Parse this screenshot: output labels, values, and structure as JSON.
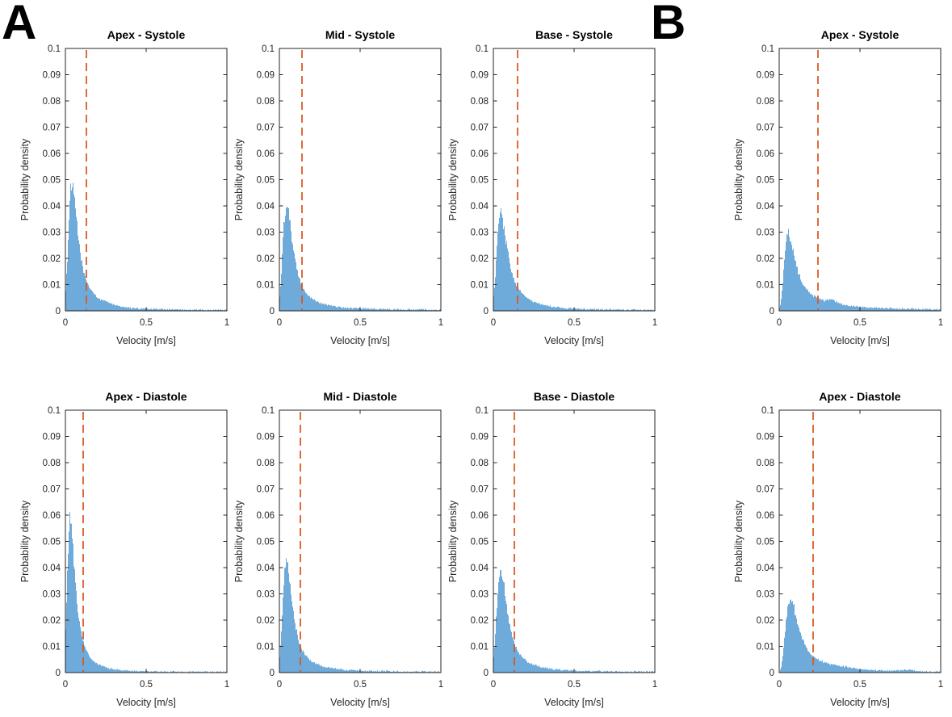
{
  "figure": {
    "panel_a_label": "A",
    "panel_b_label": "B"
  },
  "axes": {
    "xlabel": "Velocity [m/s]",
    "ylabel": "Probability density",
    "xlim": [
      0,
      1
    ],
    "ylim": [
      0,
      0.1
    ],
    "xticks": [
      0,
      0.5,
      1
    ],
    "xtick_labels": [
      "0",
      "0.5",
      "1"
    ],
    "yticks": [
      0,
      0.01,
      0.02,
      0.03,
      0.04,
      0.05,
      0.06,
      0.07,
      0.08,
      0.09,
      0.1
    ],
    "ytick_labels": [
      "0",
      "0.01",
      "0.02",
      "0.03",
      "0.04",
      "0.05",
      "0.06",
      "0.07",
      "0.08",
      "0.09",
      "0.1"
    ],
    "grid": false,
    "box": true,
    "tick_direction": "in"
  },
  "colors": {
    "histogram_fill": "#6fabda",
    "threshold_line": "#d95319",
    "axis": "#262626",
    "tick_text": "#262626",
    "title_text": "#000000",
    "background": "#ffffff"
  },
  "chart_data": [
    {
      "panel": "A",
      "title": "Apex - Systole",
      "type": "histogram",
      "region": "apex",
      "phase": "systole",
      "threshold_x": 0.13,
      "peak": {
        "x": 0.04,
        "y": 0.048
      },
      "envelope": [
        [
          0,
          0.005
        ],
        [
          0.01,
          0.016
        ],
        [
          0.02,
          0.032
        ],
        [
          0.03,
          0.045
        ],
        [
          0.04,
          0.048
        ],
        [
          0.05,
          0.0455
        ],
        [
          0.06,
          0.04
        ],
        [
          0.07,
          0.034
        ],
        [
          0.08,
          0.028
        ],
        [
          0.09,
          0.0235
        ],
        [
          0.1,
          0.019
        ],
        [
          0.11,
          0.016
        ],
        [
          0.12,
          0.0135
        ],
        [
          0.13,
          0.0115
        ],
        [
          0.14,
          0.01
        ],
        [
          0.16,
          0.0078
        ],
        [
          0.18,
          0.0062
        ],
        [
          0.2,
          0.005
        ],
        [
          0.22,
          0.0042
        ],
        [
          0.25,
          0.0036
        ],
        [
          0.27,
          0.0032
        ],
        [
          0.3,
          0.0024
        ],
        [
          0.35,
          0.0016
        ],
        [
          0.4,
          0.0012
        ],
        [
          0.45,
          0.0009
        ],
        [
          0.5,
          0.0008
        ],
        [
          0.6,
          0.0006
        ],
        [
          0.7,
          0.0005
        ],
        [
          0.8,
          0.0004
        ],
        [
          0.9,
          0.0004
        ],
        [
          1,
          0.0003
        ]
      ]
    },
    {
      "panel": "A",
      "title": "Mid - Systole",
      "type": "histogram",
      "region": "mid",
      "phase": "systole",
      "threshold_x": 0.14,
      "peak": {
        "x": 0.05,
        "y": 0.04
      },
      "envelope": [
        [
          0,
          0.004
        ],
        [
          0.01,
          0.011
        ],
        [
          0.02,
          0.024
        ],
        [
          0.03,
          0.035
        ],
        [
          0.04,
          0.0395
        ],
        [
          0.05,
          0.04
        ],
        [
          0.06,
          0.0365
        ],
        [
          0.07,
          0.0315
        ],
        [
          0.08,
          0.0265
        ],
        [
          0.09,
          0.022
        ],
        [
          0.1,
          0.0185
        ],
        [
          0.11,
          0.0155
        ],
        [
          0.12,
          0.013
        ],
        [
          0.13,
          0.011
        ],
        [
          0.14,
          0.0095
        ],
        [
          0.16,
          0.0072
        ],
        [
          0.18,
          0.0058
        ],
        [
          0.2,
          0.0047
        ],
        [
          0.22,
          0.0039
        ],
        [
          0.25,
          0.0031
        ],
        [
          0.3,
          0.0022
        ],
        [
          0.35,
          0.0016
        ],
        [
          0.4,
          0.0012
        ],
        [
          0.45,
          0.001
        ],
        [
          0.5,
          0.0009
        ],
        [
          0.6,
          0.0007
        ],
        [
          0.7,
          0.0006
        ],
        [
          0.8,
          0.0005
        ],
        [
          0.9,
          0.0005
        ],
        [
          1,
          0.0004
        ]
      ]
    },
    {
      "panel": "A",
      "title": "Base - Systole",
      "type": "histogram",
      "region": "base",
      "phase": "systole",
      "threshold_x": 0.15,
      "peak": {
        "x": 0.05,
        "y": 0.037
      },
      "envelope": [
        [
          0,
          0.004
        ],
        [
          0.01,
          0.01
        ],
        [
          0.02,
          0.021
        ],
        [
          0.03,
          0.032
        ],
        [
          0.04,
          0.0365
        ],
        [
          0.05,
          0.037
        ],
        [
          0.06,
          0.034
        ],
        [
          0.07,
          0.03
        ],
        [
          0.08,
          0.026
        ],
        [
          0.09,
          0.022
        ],
        [
          0.1,
          0.019
        ],
        [
          0.11,
          0.016
        ],
        [
          0.12,
          0.0135
        ],
        [
          0.13,
          0.0115
        ],
        [
          0.14,
          0.01
        ],
        [
          0.16,
          0.008
        ],
        [
          0.18,
          0.0065
        ],
        [
          0.2,
          0.0053
        ],
        [
          0.22,
          0.0044
        ],
        [
          0.25,
          0.0035
        ],
        [
          0.28,
          0.0028
        ],
        [
          0.3,
          0.0024
        ],
        [
          0.35,
          0.0017
        ],
        [
          0.4,
          0.0013
        ],
        [
          0.45,
          0.001
        ],
        [
          0.5,
          0.0008
        ],
        [
          0.6,
          0.0006
        ],
        [
          0.7,
          0.0005
        ],
        [
          0.8,
          0.0004
        ],
        [
          0.9,
          0.0004
        ],
        [
          1,
          0.0003
        ]
      ]
    },
    {
      "panel": "B",
      "title": "Apex - Systole",
      "type": "histogram",
      "region": "apex",
      "phase": "systole",
      "threshold_x": 0.24,
      "peak": {
        "x": 0.06,
        "y": 0.03
      },
      "envelope": [
        [
          0,
          0.0005
        ],
        [
          0.01,
          0.003
        ],
        [
          0.02,
          0.009
        ],
        [
          0.03,
          0.017
        ],
        [
          0.04,
          0.025
        ],
        [
          0.05,
          0.029
        ],
        [
          0.06,
          0.03
        ],
        [
          0.065,
          0.0285
        ],
        [
          0.07,
          0.027
        ],
        [
          0.08,
          0.0245
        ],
        [
          0.09,
          0.0215
        ],
        [
          0.1,
          0.019
        ],
        [
          0.11,
          0.0165
        ],
        [
          0.12,
          0.0145
        ],
        [
          0.13,
          0.0125
        ],
        [
          0.14,
          0.011
        ],
        [
          0.16,
          0.009
        ],
        [
          0.18,
          0.0075
        ],
        [
          0.2,
          0.0063
        ],
        [
          0.22,
          0.0054
        ],
        [
          0.24,
          0.0048
        ],
        [
          0.26,
          0.0044
        ],
        [
          0.28,
          0.004
        ],
        [
          0.3,
          0.0042
        ],
        [
          0.32,
          0.0046
        ],
        [
          0.34,
          0.004
        ],
        [
          0.36,
          0.0032
        ],
        [
          0.38,
          0.0027
        ],
        [
          0.4,
          0.0024
        ],
        [
          0.45,
          0.0019
        ],
        [
          0.5,
          0.0016
        ],
        [
          0.55,
          0.0013
        ],
        [
          0.6,
          0.0011
        ],
        [
          0.7,
          0.0009
        ],
        [
          0.8,
          0.0008
        ],
        [
          0.9,
          0.0006
        ],
        [
          1,
          0.0005
        ]
      ]
    },
    {
      "panel": "A",
      "title": "Apex - Diastole",
      "type": "histogram",
      "region": "apex",
      "phase": "diastole",
      "threshold_x": 0.11,
      "peak": {
        "x": 0.03,
        "y": 0.061
      },
      "envelope": [
        [
          0,
          0.013
        ],
        [
          0.005,
          0.02
        ],
        [
          0.01,
          0.032
        ],
        [
          0.02,
          0.052
        ],
        [
          0.03,
          0.061
        ],
        [
          0.035,
          0.059
        ],
        [
          0.04,
          0.054
        ],
        [
          0.05,
          0.0445
        ],
        [
          0.06,
          0.036
        ],
        [
          0.07,
          0.0285
        ],
        [
          0.08,
          0.0225
        ],
        [
          0.09,
          0.018
        ],
        [
          0.1,
          0.0145
        ],
        [
          0.11,
          0.012
        ],
        [
          0.12,
          0.01
        ],
        [
          0.13,
          0.0085
        ],
        [
          0.14,
          0.0072
        ],
        [
          0.16,
          0.0053
        ],
        [
          0.18,
          0.0041
        ],
        [
          0.2,
          0.0033
        ],
        [
          0.22,
          0.0027
        ],
        [
          0.25,
          0.002
        ],
        [
          0.3,
          0.0013
        ],
        [
          0.35,
          0.001
        ],
        [
          0.4,
          0.0008
        ],
        [
          0.5,
          0.0006
        ],
        [
          0.6,
          0.0004
        ],
        [
          0.7,
          0.0004
        ],
        [
          0.8,
          0.0003
        ],
        [
          0.9,
          0.0003
        ],
        [
          1,
          0.0002
        ]
      ]
    },
    {
      "panel": "A",
      "title": "Mid - Diastole",
      "type": "histogram",
      "region": "mid",
      "phase": "diastole",
      "threshold_x": 0.13,
      "peak": {
        "x": 0.045,
        "y": 0.043
      },
      "envelope": [
        [
          0,
          0.004
        ],
        [
          0.01,
          0.012
        ],
        [
          0.02,
          0.026
        ],
        [
          0.03,
          0.038
        ],
        [
          0.04,
          0.0425
        ],
        [
          0.045,
          0.043
        ],
        [
          0.05,
          0.042
        ],
        [
          0.06,
          0.0375
        ],
        [
          0.07,
          0.032
        ],
        [
          0.08,
          0.0265
        ],
        [
          0.09,
          0.022
        ],
        [
          0.1,
          0.018
        ],
        [
          0.11,
          0.015
        ],
        [
          0.12,
          0.0125
        ],
        [
          0.13,
          0.0105
        ],
        [
          0.14,
          0.009
        ],
        [
          0.16,
          0.0068
        ],
        [
          0.18,
          0.0053
        ],
        [
          0.2,
          0.0043
        ],
        [
          0.22,
          0.0036
        ],
        [
          0.25,
          0.0028
        ],
        [
          0.3,
          0.002
        ],
        [
          0.35,
          0.0014
        ],
        [
          0.4,
          0.0011
        ],
        [
          0.45,
          0.0009
        ],
        [
          0.5,
          0.0007
        ],
        [
          0.6,
          0.0006
        ],
        [
          0.7,
          0.0005
        ],
        [
          0.8,
          0.0004
        ],
        [
          0.9,
          0.0004
        ],
        [
          1,
          0.0003
        ]
      ]
    },
    {
      "panel": "A",
      "title": "Base - Diastole",
      "type": "histogram",
      "region": "base",
      "phase": "diastole",
      "threshold_x": 0.13,
      "peak": {
        "x": 0.045,
        "y": 0.04
      },
      "envelope": [
        [
          0,
          0.004
        ],
        [
          0.01,
          0.011
        ],
        [
          0.02,
          0.023
        ],
        [
          0.03,
          0.034
        ],
        [
          0.04,
          0.0385
        ],
        [
          0.045,
          0.04
        ],
        [
          0.05,
          0.0395
        ],
        [
          0.06,
          0.036
        ],
        [
          0.07,
          0.0315
        ],
        [
          0.08,
          0.0265
        ],
        [
          0.09,
          0.0225
        ],
        [
          0.1,
          0.019
        ],
        [
          0.11,
          0.016
        ],
        [
          0.12,
          0.0135
        ],
        [
          0.13,
          0.0115
        ],
        [
          0.14,
          0.0098
        ],
        [
          0.16,
          0.0074
        ],
        [
          0.18,
          0.0058
        ],
        [
          0.2,
          0.0047
        ],
        [
          0.22,
          0.0038
        ],
        [
          0.25,
          0.003
        ],
        [
          0.3,
          0.0021
        ],
        [
          0.35,
          0.0015
        ],
        [
          0.4,
          0.0011
        ],
        [
          0.45,
          0.0009
        ],
        [
          0.5,
          0.0007
        ],
        [
          0.6,
          0.0006
        ],
        [
          0.7,
          0.0005
        ],
        [
          0.8,
          0.0004
        ],
        [
          0.9,
          0.0004
        ],
        [
          1,
          0.0003
        ]
      ]
    },
    {
      "panel": "B",
      "title": "Apex - Diastole",
      "type": "histogram",
      "region": "apex",
      "phase": "diastole",
      "threshold_x": 0.21,
      "peak": {
        "x": 0.07,
        "y": 0.028
      },
      "envelope": [
        [
          0,
          0.0003
        ],
        [
          0.01,
          0.0015
        ],
        [
          0.02,
          0.005
        ],
        [
          0.03,
          0.011
        ],
        [
          0.04,
          0.018
        ],
        [
          0.05,
          0.0235
        ],
        [
          0.06,
          0.0265
        ],
        [
          0.07,
          0.028
        ],
        [
          0.08,
          0.027
        ],
        [
          0.09,
          0.0252
        ],
        [
          0.1,
          0.0225
        ],
        [
          0.11,
          0.0195
        ],
        [
          0.12,
          0.017
        ],
        [
          0.13,
          0.015
        ],
        [
          0.14,
          0.0133
        ],
        [
          0.15,
          0.0118
        ],
        [
          0.16,
          0.0105
        ],
        [
          0.18,
          0.0085
        ],
        [
          0.2,
          0.0068
        ],
        [
          0.22,
          0.0057
        ],
        [
          0.25,
          0.0046
        ],
        [
          0.28,
          0.0039
        ],
        [
          0.3,
          0.0036
        ],
        [
          0.35,
          0.0029
        ],
        [
          0.4,
          0.0023
        ],
        [
          0.45,
          0.0018
        ],
        [
          0.5,
          0.0014
        ],
        [
          0.55,
          0.0011
        ],
        [
          0.6,
          0.0009
        ],
        [
          0.65,
          0.0008
        ],
        [
          0.7,
          0.0007
        ],
        [
          0.75,
          0.0008
        ],
        [
          0.8,
          0.001
        ],
        [
          0.85,
          0.0007
        ],
        [
          0.9,
          0.0005
        ],
        [
          0.95,
          0.0004
        ],
        [
          1,
          0.0004
        ]
      ]
    }
  ]
}
